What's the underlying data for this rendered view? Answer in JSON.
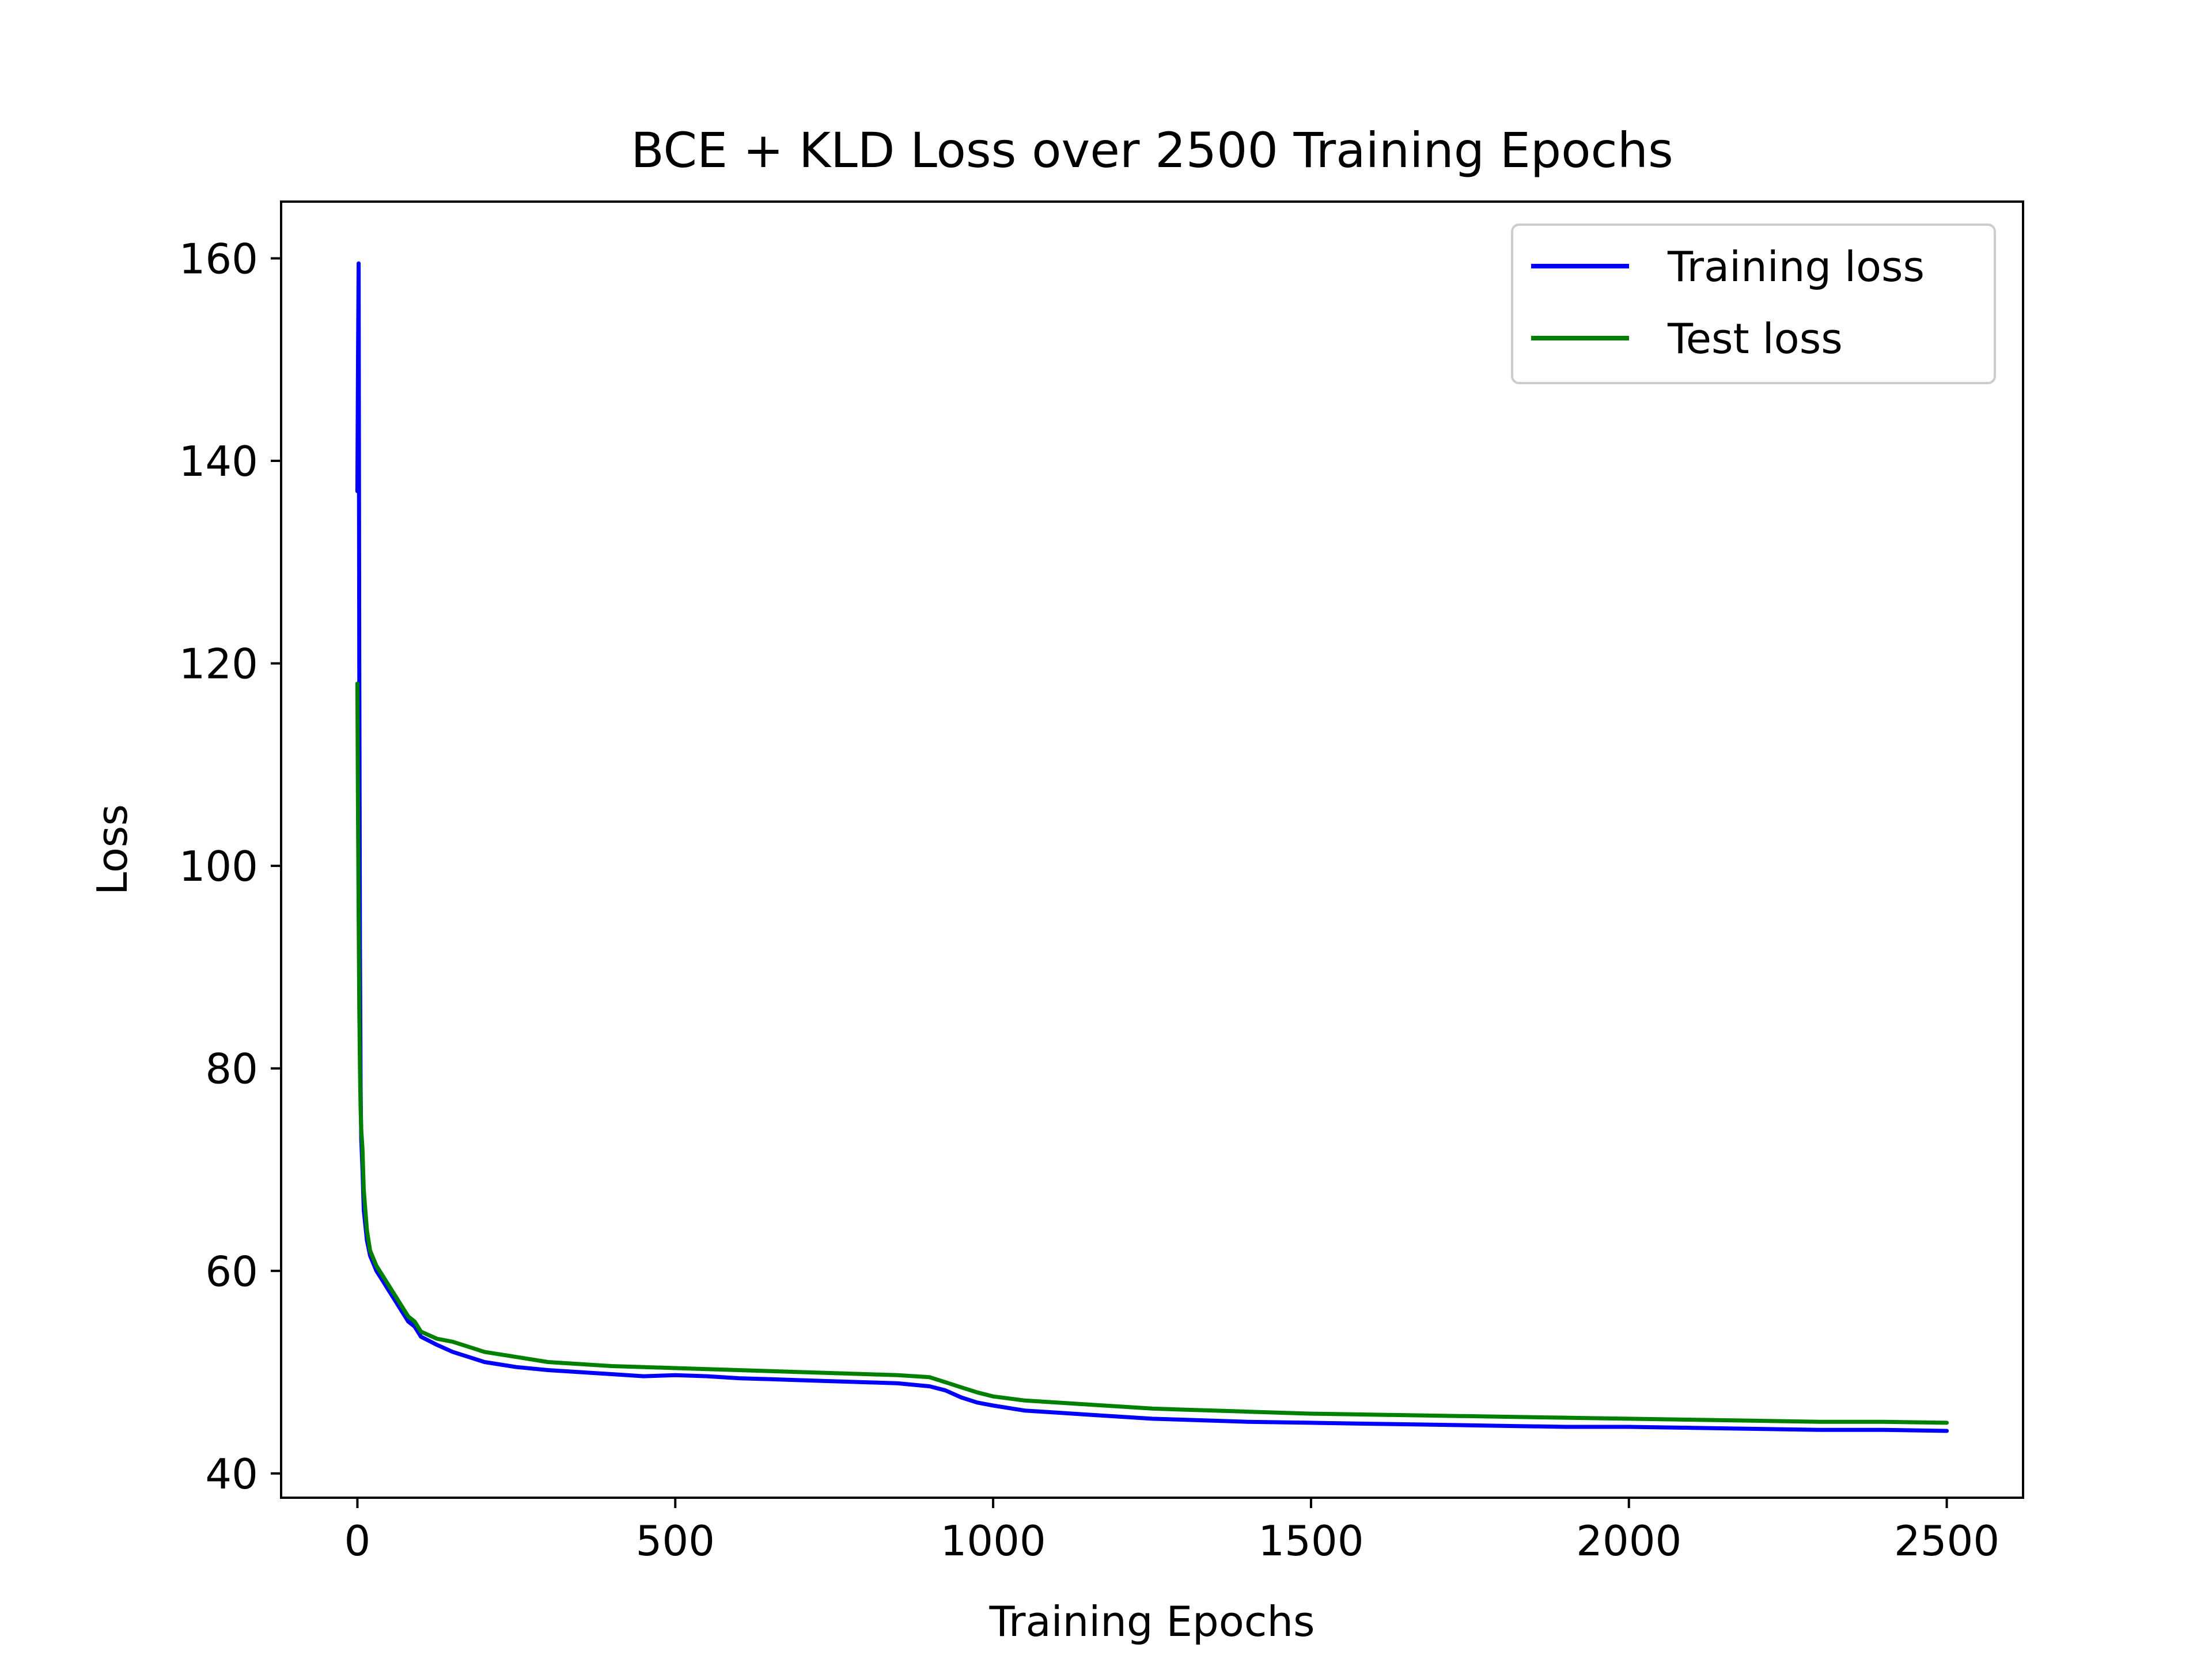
{
  "chart_data": {
    "type": "line",
    "title": "BCE + KLD Loss over 2500 Training Epochs",
    "xlabel": "Training Epochs",
    "ylabel": "Loss",
    "xlim": [
      -120,
      2620
    ],
    "ylim": [
      37.6,
      165.6
    ],
    "xticks": [
      0,
      500,
      1000,
      1500,
      2000,
      2500
    ],
    "yticks": [
      40,
      60,
      80,
      100,
      120,
      140,
      160
    ],
    "grid": false,
    "legend_position": "top-right",
    "series": [
      {
        "name": "Training loss",
        "color": "#0000ff",
        "x": [
          0,
          1,
          2,
          3,
          4,
          5,
          6,
          8,
          10,
          15,
          20,
          30,
          40,
          50,
          60,
          70,
          80,
          90,
          100,
          125,
          150,
          175,
          200,
          250,
          300,
          350,
          400,
          450,
          500,
          550,
          600,
          650,
          700,
          750,
          800,
          850,
          900,
          925,
          950,
          975,
          1000,
          1050,
          1100,
          1150,
          1200,
          1250,
          1300,
          1400,
          1500,
          1600,
          1700,
          1800,
          1900,
          2000,
          2100,
          2200,
          2300,
          2400,
          2500
        ],
        "y": [
          137,
          150,
          159.5,
          120,
          92,
          78,
          73,
          70,
          66,
          63,
          61.5,
          60,
          59,
          58,
          57,
          56,
          55,
          54.5,
          53.5,
          52.7,
          52,
          51.5,
          51,
          50.5,
          50.2,
          50,
          49.8,
          49.6,
          49.7,
          49.6,
          49.4,
          49.3,
          49.2,
          49.1,
          49,
          48.9,
          48.6,
          48.2,
          47.5,
          47,
          46.7,
          46.2,
          46,
          45.8,
          45.6,
          45.4,
          45.3,
          45.1,
          45,
          44.9,
          44.8,
          44.7,
          44.6,
          44.6,
          44.5,
          44.4,
          44.3,
          44.3,
          44.2
        ]
      },
      {
        "name": "Test loss",
        "color": "#008000",
        "x": [
          0,
          1,
          2,
          3,
          4,
          5,
          6,
          8,
          10,
          15,
          20,
          30,
          40,
          50,
          60,
          70,
          80,
          90,
          100,
          125,
          150,
          175,
          200,
          250,
          300,
          350,
          400,
          450,
          500,
          550,
          600,
          650,
          700,
          750,
          800,
          850,
          900,
          925,
          950,
          975,
          1000,
          1050,
          1100,
          1150,
          1200,
          1250,
          1300,
          1400,
          1500,
          1600,
          1700,
          1800,
          1900,
          2000,
          2100,
          2200,
          2300,
          2400,
          2500
        ],
        "y": [
          118,
          105,
          95,
          86,
          80,
          76,
          74,
          72,
          68,
          64,
          62,
          60.5,
          59.5,
          58.5,
          57.5,
          56.5,
          55.5,
          55,
          54,
          53.3,
          53,
          52.5,
          52,
          51.5,
          51,
          50.8,
          50.6,
          50.5,
          50.4,
          50.3,
          50.2,
          50.1,
          50,
          49.9,
          49.8,
          49.7,
          49.5,
          49,
          48.5,
          48,
          47.6,
          47.2,
          47,
          46.8,
          46.6,
          46.4,
          46.3,
          46.1,
          45.9,
          45.8,
          45.7,
          45.6,
          45.5,
          45.4,
          45.3,
          45.2,
          45.1,
          45.1,
          45
        ]
      }
    ]
  }
}
